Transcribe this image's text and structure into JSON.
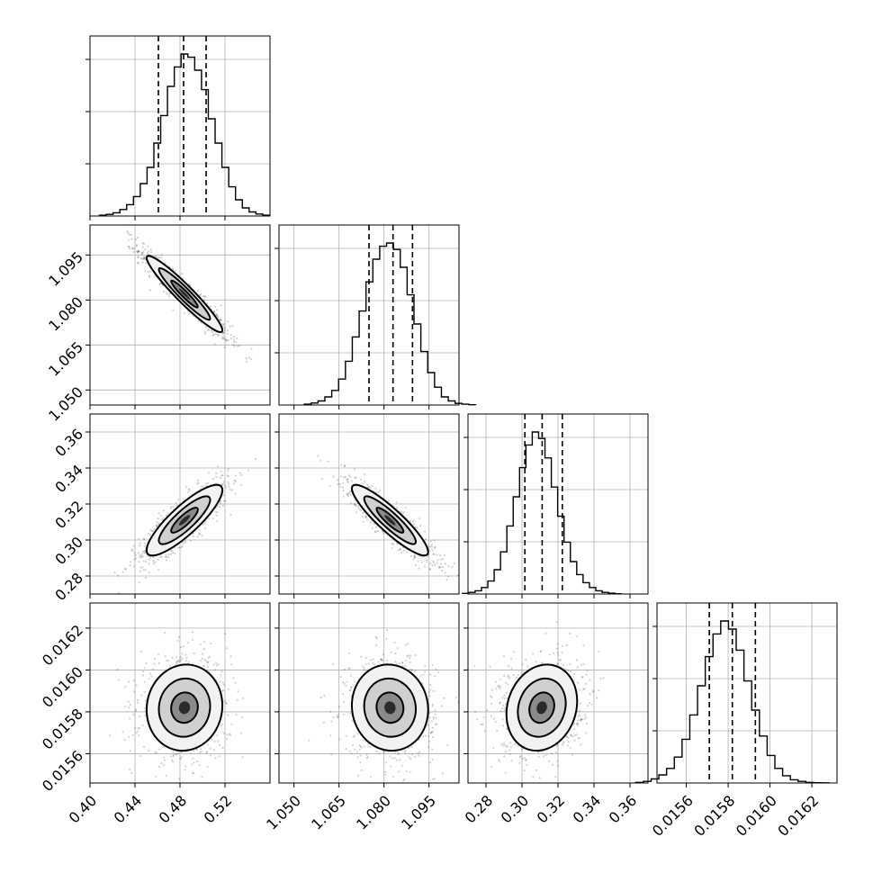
{
  "chart_data": {
    "type": "corner",
    "parameters": [
      {
        "ticks": [
          0.4,
          0.44,
          0.48,
          0.52
        ],
        "tick_labels": [
          "0.40",
          "0.44",
          "0.48",
          "0.52"
        ],
        "range": [
          0.4,
          0.56
        ],
        "quantiles": [
          0.4608,
          0.4832,
          0.5032
        ],
        "hist_bins": [
          0.005,
          0.01,
          0.02,
          0.04,
          0.07,
          0.12,
          0.2,
          0.3,
          0.45,
          0.62,
          0.8,
          0.92,
          1.0,
          0.98,
          0.9,
          0.78,
          0.6,
          0.45,
          0.3,
          0.18,
          0.1,
          0.05,
          0.025,
          0.012,
          0.005
        ],
        "mean": 0.484,
        "sigma": 0.018
      },
      {
        "ticks": [
          1.05,
          1.065,
          1.08,
          1.095
        ],
        "tick_labels": [
          "1.050",
          "1.065",
          "1.080",
          "1.095"
        ],
        "range": [
          1.045,
          1.105
        ],
        "quantiles": [
          1.075,
          1.083,
          1.0895
        ],
        "hist_bins": [
          0.005,
          0.012,
          0.025,
          0.05,
          0.09,
          0.16,
          0.27,
          0.42,
          0.58,
          0.76,
          0.9,
          0.98,
          1.0,
          0.96,
          0.85,
          0.68,
          0.5,
          0.33,
          0.2,
          0.11,
          0.05,
          0.025,
          0.01,
          0.005,
          0.002
        ],
        "mean": 1.082,
        "sigma": 0.0068
      },
      {
        "ticks": [
          0.28,
          0.3,
          0.32,
          0.34,
          0.36
        ],
        "tick_labels": [
          "0.28",
          "0.30",
          "0.32",
          "0.34",
          "0.36"
        ],
        "range": [
          0.27,
          0.37
        ],
        "quantiles": [
          0.3016,
          0.3112,
          0.3224
        ],
        "hist_bins": [
          0.004,
          0.01,
          0.02,
          0.04,
          0.08,
          0.15,
          0.26,
          0.42,
          0.6,
          0.78,
          0.92,
          1.0,
          0.96,
          0.84,
          0.66,
          0.48,
          0.32,
          0.2,
          0.12,
          0.07,
          0.04,
          0.02,
          0.01,
          0.005,
          0.002
        ],
        "mean": 0.311,
        "sigma": 0.0105
      },
      {
        "ticks": [
          0.0156,
          0.0158,
          0.016,
          0.0162
        ],
        "tick_labels": [
          "0.0156",
          "0.0158",
          "0.0160",
          "0.0162"
        ],
        "range": [
          0.01546,
          0.01632
        ],
        "quantiles": [
          0.01571,
          0.01582,
          0.01593
        ],
        "hist_bins": [
          0.004,
          0.01,
          0.025,
          0.05,
          0.09,
          0.16,
          0.27,
          0.42,
          0.6,
          0.78,
          0.92,
          1.0,
          0.95,
          0.82,
          0.63,
          0.45,
          0.29,
          0.17,
          0.09,
          0.045,
          0.02,
          0.01,
          0.004,
          0.002,
          0.001
        ],
        "mean": 0.01582,
        "sigma": 0.00011
      }
    ],
    "correlations": {
      "1-0": -0.95,
      "2-0": 0.85,
      "2-1": -0.9,
      "3-0": 0.05,
      "3-1": -0.05,
      "3-2": 0.15
    },
    "contour_levels_sigma": [
      0.6,
      1.15,
      1.7
    ],
    "grid": true
  }
}
